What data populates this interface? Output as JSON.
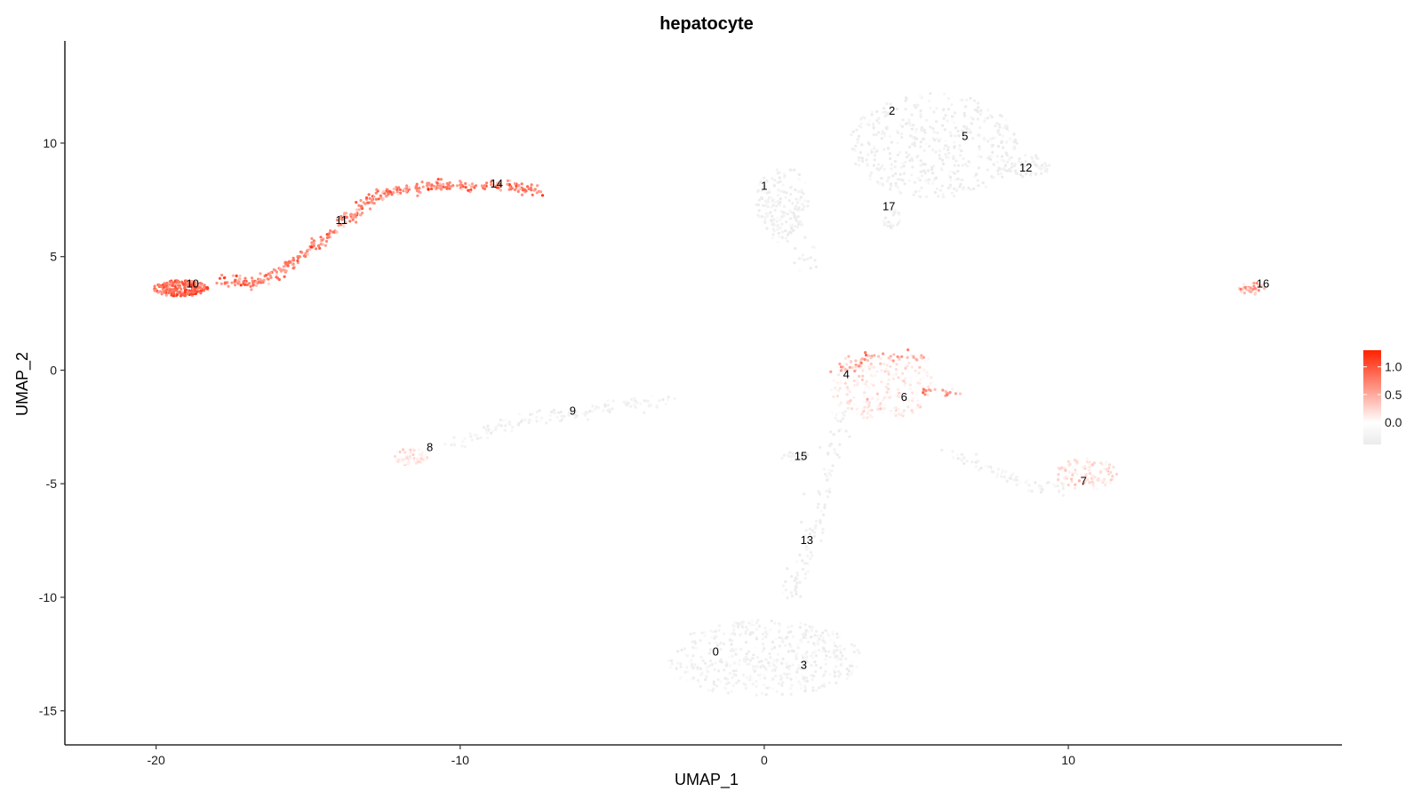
{
  "chart_data": {
    "type": "scatter",
    "title": "hepatocyte",
    "xlabel": "UMAP_1",
    "ylabel": "UMAP_2",
    "xlim": [
      -23,
      19
    ],
    "ylim": [
      -16.5,
      14.5
    ],
    "xticks": [
      -20,
      -10,
      0,
      10
    ],
    "yticks": [
      -15,
      -10,
      -5,
      0,
      5,
      10
    ],
    "grid": false,
    "color_scale": {
      "low": "#ebebeb",
      "mid": "#ffffff",
      "high": "#ff2200",
      "min": -0.4,
      "max": 1.3,
      "ticks": [
        0.0,
        0.5,
        1.0
      ],
      "tick_labels": [
        "0.0",
        "0.5",
        "1.0"
      ],
      "legend_position": "right"
    },
    "cluster_labels": [
      {
        "label": "0",
        "x": -1.6,
        "y": -12.4
      },
      {
        "label": "1",
        "x": 0.0,
        "y": 8.1
      },
      {
        "label": "2",
        "x": 4.2,
        "y": 11.4
      },
      {
        "label": "3",
        "x": 1.3,
        "y": -13.0
      },
      {
        "label": "4",
        "x": 2.7,
        "y": -0.2
      },
      {
        "label": "5",
        "x": 6.6,
        "y": 10.3
      },
      {
        "label": "6",
        "x": 4.6,
        "y": -1.2
      },
      {
        "label": "7",
        "x": 10.5,
        "y": -4.9
      },
      {
        "label": "8",
        "x": -11.0,
        "y": -3.4
      },
      {
        "label": "9",
        "x": -6.3,
        "y": -1.8
      },
      {
        "label": "10",
        "x": -18.8,
        "y": 3.8
      },
      {
        "label": "11",
        "x": -13.9,
        "y": 6.6
      },
      {
        "label": "12",
        "x": 8.6,
        "y": 8.9
      },
      {
        "label": "13",
        "x": 1.4,
        "y": -7.5
      },
      {
        "label": "14",
        "x": -8.8,
        "y": 8.2
      },
      {
        "label": "15",
        "x": 1.2,
        "y": -3.8
      },
      {
        "label": "16",
        "x": 16.4,
        "y": 3.8
      },
      {
        "label": "17",
        "x": 4.1,
        "y": 7.2
      }
    ],
    "point_clouds": [
      {
        "cluster": "10",
        "shape": "ellipse",
        "cx": -19.2,
        "cy": 3.6,
        "rx": 0.9,
        "ry": 0.35,
        "n": 220,
        "expr": 0.85
      },
      {
        "cluster": "10-11-14",
        "shape": "curve",
        "path": [
          [
            -18.0,
            3.9
          ],
          [
            -16.5,
            3.9
          ],
          [
            -15.2,
            5.0
          ],
          [
            -13.8,
            6.6
          ],
          [
            -12.5,
            7.8
          ],
          [
            -11.0,
            8.1
          ],
          [
            -9.0,
            8.2
          ],
          [
            -7.3,
            7.9
          ]
        ],
        "width": 0.12,
        "n": 420,
        "expr": 0.7
      },
      {
        "cluster": "1",
        "shape": "ellipse",
        "cx": 0.6,
        "cy": 7.4,
        "rx": 0.9,
        "ry": 1.6,
        "n": 160,
        "expr": 0.0
      },
      {
        "cluster": "1-tail",
        "shape": "curve",
        "path": [
          [
            0.5,
            6.5
          ],
          [
            1.5,
            4.5
          ]
        ],
        "width": 0.25,
        "n": 30,
        "expr": 0.0
      },
      {
        "cluster": "2-5-12",
        "shape": "ellipse",
        "cx": 5.6,
        "cy": 9.9,
        "rx": 2.8,
        "ry": 2.3,
        "n": 480,
        "expr": 0.0
      },
      {
        "cluster": "12",
        "shape": "ellipse",
        "cx": 8.6,
        "cy": 9.0,
        "rx": 0.8,
        "ry": 0.5,
        "n": 70,
        "expr": 0.0
      },
      {
        "cluster": "17",
        "shape": "ellipse",
        "cx": 4.2,
        "cy": 6.7,
        "rx": 0.3,
        "ry": 0.5,
        "n": 30,
        "expr": 0.0
      },
      {
        "cluster": "16",
        "shape": "ellipse",
        "cx": 16.0,
        "cy": 3.6,
        "rx": 0.5,
        "ry": 0.3,
        "n": 40,
        "expr": 0.45
      },
      {
        "cluster": "4-6",
        "shape": "ellipse",
        "cx": 3.9,
        "cy": -0.8,
        "rx": 1.7,
        "ry": 1.4,
        "n": 260,
        "expr": 0.1
      },
      {
        "cluster": "4-top",
        "shape": "curve",
        "path": [
          [
            2.3,
            -0.1
          ],
          [
            3.5,
            0.6
          ],
          [
            5.3,
            0.6
          ]
        ],
        "width": 0.15,
        "n": 60,
        "expr": 0.4
      },
      {
        "cluster": "6-right",
        "shape": "curve",
        "path": [
          [
            5.2,
            -0.9
          ],
          [
            6.4,
            -1.0
          ]
        ],
        "width": 0.1,
        "n": 20,
        "expr": 0.45
      },
      {
        "cluster": "9",
        "shape": "curve",
        "path": [
          [
            -10.5,
            -3.3
          ],
          [
            -8.0,
            -2.2
          ],
          [
            -5.0,
            -1.6
          ],
          [
            -3.0,
            -1.3
          ]
        ],
        "width": 0.15,
        "n": 150,
        "expr": 0.05
      },
      {
        "cluster": "8",
        "shape": "ellipse",
        "cx": -11.6,
        "cy": -3.8,
        "rx": 0.6,
        "ry": 0.4,
        "n": 70,
        "expr": 0.1
      },
      {
        "cluster": "7-arm",
        "shape": "curve",
        "path": [
          [
            6.0,
            -3.6
          ],
          [
            8.0,
            -4.8
          ],
          [
            10.0,
            -5.4
          ]
        ],
        "width": 0.15,
        "n": 80,
        "expr": 0.05
      },
      {
        "cluster": "7",
        "shape": "ellipse",
        "cx": 10.6,
        "cy": -4.6,
        "rx": 1.1,
        "ry": 0.7,
        "n": 120,
        "expr": 0.15
      },
      {
        "cluster": "15",
        "shape": "ellipse",
        "cx": 1.0,
        "cy": -3.8,
        "rx": 0.5,
        "ry": 0.2,
        "n": 25,
        "expr": 0.0
      },
      {
        "cluster": "stalk",
        "shape": "curve",
        "path": [
          [
            2.6,
            -1.5
          ],
          [
            2.2,
            -4.0
          ],
          [
            1.7,
            -6.5
          ],
          [
            1.3,
            -8.5
          ],
          [
            0.8,
            -10.0
          ]
        ],
        "width": 0.2,
        "n": 110,
        "expr": 0.0
      },
      {
        "cluster": "0-3",
        "shape": "ellipse",
        "cx": 0.0,
        "cy": -12.7,
        "rx": 3.2,
        "ry": 1.7,
        "n": 520,
        "expr": 0.05
      }
    ]
  }
}
